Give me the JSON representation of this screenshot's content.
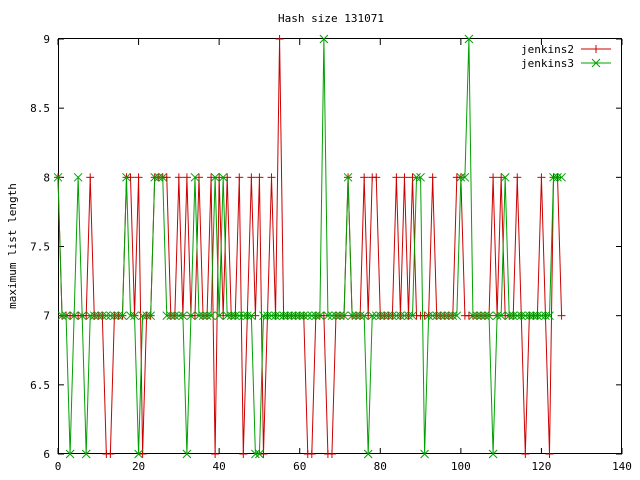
{
  "chart_data": {
    "type": "line",
    "title": "Hash size 131071",
    "xlabel": "",
    "ylabel": "maximum list length",
    "xlim": [
      0,
      140
    ],
    "ylim": [
      6,
      9
    ],
    "xticks": [
      0,
      20,
      40,
      60,
      80,
      100,
      120,
      140
    ],
    "yticks": [
      6,
      6.5,
      7,
      7.5,
      8,
      8.5,
      9
    ],
    "ytick_labels": [
      "6",
      "6.5",
      "7",
      "7.5",
      "8",
      "8.5",
      "9"
    ],
    "grid": false,
    "legend_position": "top-right",
    "series": [
      {
        "name": "jenkins2",
        "color": "#cc0000",
        "marker": "plus",
        "x": [
          0,
          1,
          2,
          3,
          4,
          5,
          6,
          7,
          8,
          9,
          10,
          11,
          12,
          13,
          14,
          15,
          16,
          17,
          18,
          19,
          20,
          21,
          22,
          23,
          24,
          25,
          26,
          27,
          28,
          29,
          30,
          31,
          32,
          33,
          34,
          35,
          36,
          37,
          38,
          39,
          40,
          41,
          42,
          43,
          44,
          45,
          46,
          47,
          48,
          49,
          50,
          51,
          52,
          53,
          54,
          55,
          56,
          57,
          58,
          59,
          60,
          61,
          62,
          63,
          64,
          65,
          66,
          67,
          68,
          69,
          70,
          71,
          72,
          73,
          74,
          75,
          76,
          77,
          78,
          79,
          80,
          81,
          82,
          83,
          84,
          85,
          86,
          87,
          88,
          89,
          90,
          91,
          92,
          93,
          94,
          95,
          96,
          97,
          98,
          99,
          100,
          101,
          102,
          103,
          104,
          105,
          106,
          107,
          108,
          109,
          110,
          111,
          112,
          113,
          114,
          115,
          116,
          117,
          118,
          119,
          120,
          121,
          122,
          123,
          124,
          125
        ],
        "y": [
          8,
          7,
          7,
          7,
          7,
          7,
          7,
          7,
          8,
          7,
          7,
          7,
          6,
          6,
          7,
          7,
          7,
          8,
          8,
          7,
          8,
          6,
          7,
          7,
          8,
          8,
          8,
          8,
          7,
          7,
          8,
          7,
          8,
          7,
          7,
          8,
          7,
          7,
          8,
          6,
          8,
          7,
          8,
          7,
          7,
          8,
          6,
          7,
          8,
          7,
          8,
          6,
          7,
          8,
          7,
          9,
          7,
          7,
          7,
          7,
          7,
          7,
          6,
          6,
          7,
          7,
          7,
          6,
          6,
          7,
          7,
          7,
          8,
          7,
          7,
          7,
          8,
          7,
          8,
          8,
          7,
          7,
          7,
          7,
          8,
          7,
          8,
          7,
          8,
          7,
          7,
          7,
          7,
          8,
          7,
          7,
          7,
          7,
          7,
          8,
          8,
          7,
          7,
          7,
          7,
          7,
          7,
          7,
          8,
          7,
          8,
          7,
          7,
          7,
          8,
          7,
          6,
          7,
          7,
          7,
          8,
          7,
          6,
          8,
          8,
          7
        ]
      },
      {
        "name": "jenkins3",
        "color": "#00a000",
        "marker": "cross",
        "x": [
          0,
          1,
          2,
          3,
          4,
          5,
          6,
          7,
          8,
          9,
          10,
          11,
          12,
          13,
          14,
          15,
          16,
          17,
          18,
          19,
          20,
          21,
          22,
          23,
          24,
          25,
          26,
          27,
          28,
          29,
          30,
          31,
          32,
          33,
          34,
          35,
          36,
          37,
          38,
          39,
          40,
          41,
          42,
          43,
          44,
          45,
          46,
          47,
          48,
          49,
          50,
          51,
          52,
          53,
          54,
          55,
          56,
          57,
          58,
          59,
          60,
          61,
          62,
          63,
          64,
          65,
          66,
          67,
          68,
          69,
          70,
          71,
          72,
          73,
          74,
          75,
          76,
          77,
          78,
          79,
          80,
          81,
          82,
          83,
          84,
          85,
          86,
          87,
          88,
          89,
          90,
          91,
          92,
          93,
          94,
          95,
          96,
          97,
          98,
          99,
          100,
          101,
          102,
          103,
          104,
          105,
          106,
          107,
          108,
          109,
          110,
          111,
          112,
          113,
          114,
          115,
          116,
          117,
          118,
          119,
          120,
          121,
          122,
          123,
          124,
          125
        ],
        "y": [
          8,
          7,
          7,
          6,
          7,
          8,
          7,
          6,
          7,
          7,
          7,
          7,
          7,
          7,
          7,
          7,
          7,
          8,
          7,
          7,
          6,
          7,
          7,
          7,
          8,
          8,
          8,
          7,
          7,
          7,
          7,
          7,
          6,
          7,
          8,
          7,
          7,
          7,
          7,
          8,
          7,
          8,
          7,
          7,
          7,
          7,
          7,
          7,
          7,
          6,
          6,
          7,
          7,
          7,
          7,
          7,
          7,
          7,
          7,
          7,
          7,
          7,
          7,
          7,
          7,
          7,
          9,
          7,
          7,
          7,
          7,
          7,
          8,
          7,
          7,
          7,
          7,
          6,
          7,
          7,
          7,
          7,
          7,
          7,
          7,
          7,
          7,
          7,
          7,
          8,
          8,
          6,
          7,
          7,
          7,
          7,
          7,
          7,
          7,
          7,
          8,
          8,
          9,
          7,
          7,
          7,
          7,
          7,
          6,
          7,
          7,
          8,
          7,
          7,
          7,
          7,
          7,
          7,
          7,
          7,
          7,
          7,
          7,
          8,
          8,
          8
        ]
      }
    ]
  }
}
